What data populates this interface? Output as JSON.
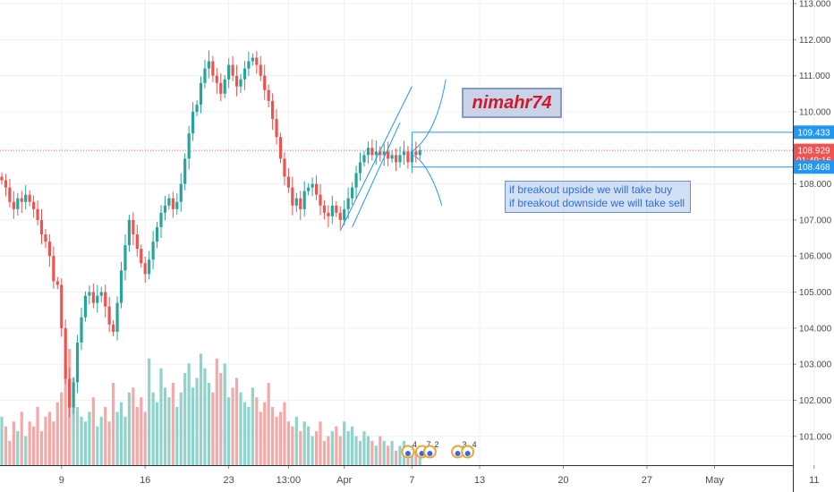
{
  "chart_data": {
    "type": "candlestick",
    "ylim": [
      100.3,
      113.05
    ],
    "y_ticks": [
      "113.000",
      "112.000",
      "111.000",
      "110.000",
      "108.000",
      "107.000",
      "106.000",
      "105.000",
      "104.000",
      "103.000",
      "102.000",
      "101.000"
    ],
    "x_ticks": [
      {
        "label": "9",
        "bar": 15
      },
      {
        "label": "16",
        "bar": 36
      },
      {
        "label": "23",
        "bar": 57
      },
      {
        "label": "13:00",
        "bar": 72
      },
      {
        "label": "Apr",
        "bar": 86
      },
      {
        "label": "7",
        "bar": 103
      },
      {
        "label": "13",
        "bar": 120
      },
      {
        "label": "20",
        "bar": 141
      },
      {
        "label": "27",
        "bar": 162
      },
      {
        "label": "May",
        "bar": 179
      },
      {
        "label": "11",
        "bar": 204
      }
    ],
    "price_labels": [
      {
        "text": "109.433",
        "value": 109.433,
        "color": "#2196f3"
      },
      {
        "text": "108.929",
        "value": 108.929,
        "color": "#ef5350"
      },
      {
        "text": "01:49:16",
        "value": 108.66,
        "color": "#ef5350"
      },
      {
        "text": "108.468",
        "value": 108.468,
        "color": "#2196f3"
      }
    ],
    "current_price": 108.929,
    "horizontal_lines": [
      109.433,
      108.468
    ],
    "closes": [
      108.1,
      107.9,
      107.5,
      107.3,
      107.6,
      107.5,
      107.7,
      107.5,
      107.3,
      107.0,
      106.6,
      106.4,
      106.0,
      105.3,
      105.2,
      104.0,
      102.6,
      101.8,
      102.5,
      103.6,
      104.3,
      104.9,
      105.0,
      104.7,
      104.9,
      105.0,
      104.6,
      104.1,
      103.9,
      104.7,
      105.6,
      106.3,
      107.0,
      106.6,
      106.2,
      105.8,
      105.5,
      105.9,
      106.4,
      106.8,
      107.2,
      107.4,
      107.6,
      107.3,
      107.5,
      108.0,
      108.7,
      109.4,
      110.0,
      110.2,
      110.8,
      111.2,
      111.4,
      111.0,
      110.8,
      110.5,
      110.9,
      111.3,
      111.0,
      110.7,
      110.9,
      111.2,
      111.4,
      111.5,
      111.3,
      111.0,
      110.6,
      110.3,
      109.8,
      109.3,
      108.7,
      108.2,
      107.9,
      107.4,
      107.6,
      107.3,
      107.8,
      107.9,
      108.0,
      107.7,
      107.4,
      107.2,
      107.1,
      107.4,
      107.2,
      107.0,
      107.3,
      107.6,
      107.9,
      108.3,
      108.6,
      108.8,
      109.0,
      108.8,
      108.9,
      108.8,
      108.9,
      108.7,
      108.8,
      108.6,
      108.8,
      108.9,
      108.6,
      108.9,
      108.8,
      108.93
    ],
    "volumes": [
      1.0,
      0.8,
      0.5,
      0.9,
      0.7,
      1.1,
      0.6,
      0.9,
      0.8,
      1.2,
      0.7,
      1.0,
      1.1,
      0.9,
      1.3,
      1.5,
      2.0,
      2.4,
      1.8,
      1.2,
      1.0,
      0.9,
      1.1,
      1.4,
      0.8,
      1.0,
      1.2,
      0.9,
      1.7,
      1.1,
      1.3,
      1.0,
      1.5,
      1.6,
      1.2,
      1.4,
      1.1,
      2.2,
      1.5,
      1.3,
      2.0,
      1.6,
      1.4,
      1.7,
      1.2,
      1.5,
      1.9,
      2.1,
      1.6,
      1.8,
      2.3,
      2.0,
      1.7,
      1.5,
      2.2,
      1.9,
      2.1,
      1.4,
      1.6,
      1.8,
      1.5,
      1.3,
      1.2,
      1.6,
      1.4,
      1.1,
      1.3,
      1.7,
      1.2,
      1.0,
      1.1,
      1.3,
      0.9,
      0.8,
      1.0,
      0.7,
      0.9,
      0.8,
      0.6,
      0.7,
      0.9,
      0.5,
      0.6,
      0.7,
      0.8,
      0.6,
      0.9,
      0.7,
      0.8,
      0.6,
      0.5,
      0.7,
      0.6,
      0.5,
      0.4,
      0.6,
      0.5,
      0.4,
      0.5,
      0.3,
      0.4,
      0.5,
      0.3,
      0.4,
      0.3,
      0.3
    ],
    "channel_lines": [
      {
        "p1": [
          85,
          106.7
        ],
        "p2": [
          103,
          110.7
        ]
      },
      {
        "p1": [
          88,
          106.8
        ],
        "p2": [
          100,
          109.7
        ]
      }
    ],
    "projection_up": [
      [
        103,
        108.9
      ],
      [
        107,
        109.2
      ],
      [
        110,
        109.9
      ],
      [
        111.5,
        110.9
      ]
    ],
    "projection_down": [
      [
        103,
        108.8
      ],
      [
        106,
        108.7
      ],
      [
        109,
        108.0
      ],
      [
        110.5,
        107.4
      ]
    ],
    "event_badges": [
      {
        "bar": 102,
        "text": "4",
        "color": "#e7a43a"
      },
      {
        "bar": 105.5,
        "text": "7",
        "color": "#e7a43a"
      },
      {
        "bar": 107.5,
        "text": "2",
        "color": "#e7a43a"
      },
      {
        "bar": 114.5,
        "text": "3",
        "color": "#e7a43a"
      },
      {
        "bar": 117,
        "text": "4",
        "color": "#e7a43a"
      }
    ],
    "colors": {
      "up": "#26a69a",
      "down": "#ef5350",
      "volume_up": "#8fd3cb",
      "volume_down": "#f4a9a8",
      "line": "#2196f3"
    }
  },
  "annotation": {
    "tag": "nimahr74",
    "note_line1": "if breakout upside we will take buy",
    "note_line2": "if breakout downside we will take sell"
  }
}
